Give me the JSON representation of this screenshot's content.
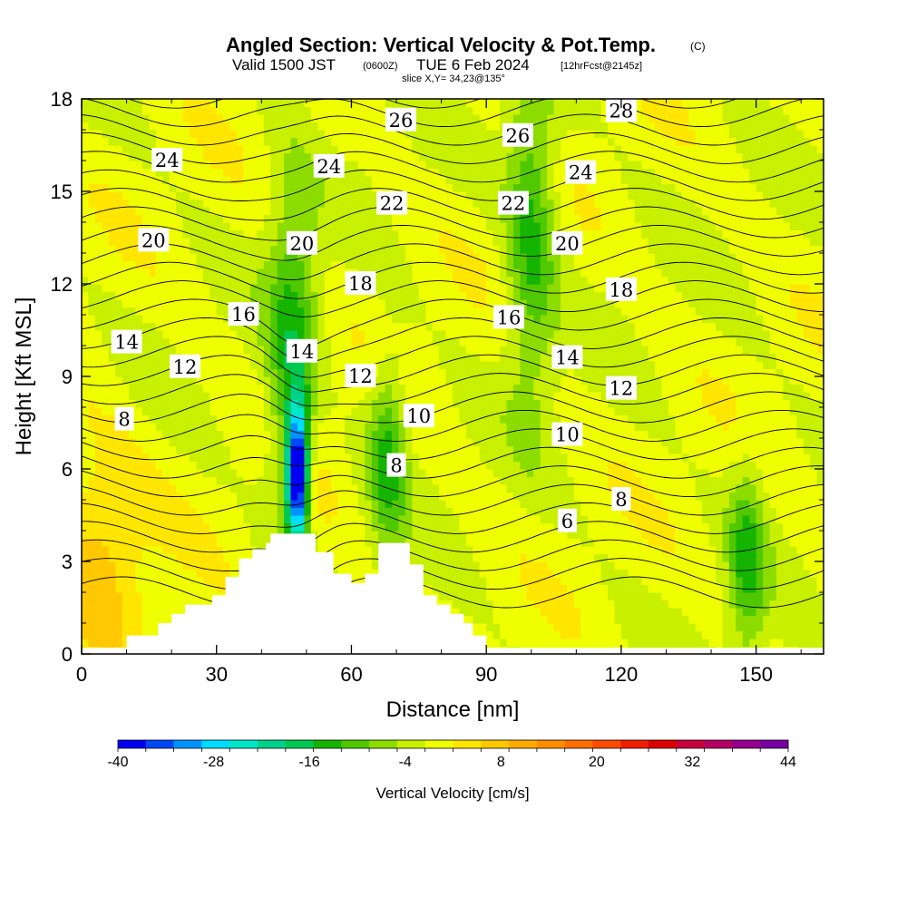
{
  "header": {
    "title": "Angled Section: Vertical Velocity & Pot.Temp.",
    "title_suffix": "(C)",
    "valid_prefix": "Valid 1500 JST",
    "valid_utc": "(0600Z)",
    "valid_date": "TUE 6 Feb 2024",
    "forecast_info": "[12hrFcst@2145z]",
    "slice_info": "slice X,Y= 34,23@135°"
  },
  "colors": {
    "terrain": "#ffffff",
    "contour": "#000000",
    "frame": "#000000"
  },
  "chart_data": {
    "type": "heatmap",
    "title": "Angled Section: Vertical Velocity & Pot.Temp.",
    "xlabel": "Distance [nm]",
    "ylabel": "Height [Kft MSL]",
    "xlim": [
      0,
      165
    ],
    "ylim": [
      0,
      18
    ],
    "x_ticks": [
      0,
      30,
      60,
      90,
      120,
      150
    ],
    "y_ticks": [
      0,
      3,
      6,
      9,
      12,
      15,
      18
    ],
    "colorbar": {
      "title": "Vertical Velocity [cm/s]",
      "min": -40,
      "max": 44,
      "step": 4,
      "tick_labels": [
        "-40",
        "-28",
        "-16",
        "-4",
        "8",
        "20",
        "32",
        "44"
      ],
      "colors": [
        "#0000f0",
        "#0048f5",
        "#0093ff",
        "#00dcff",
        "#00e6c8",
        "#00d28c",
        "#00c850",
        "#14b400",
        "#50c800",
        "#8cdc00",
        "#c8f000",
        "#f0ff00",
        "#ffe600",
        "#ffc800",
        "#ffaa00",
        "#ff8c00",
        "#ff6e00",
        "#ff4b00",
        "#f01e00",
        "#dc0000",
        "#c8003c",
        "#b40064",
        "#96008c",
        "#7800a0"
      ]
    },
    "velocity_field": {
      "description_units": "cm/s",
      "background": 5,
      "features": [
        {
          "x": 48,
          "y": 5.8,
          "peak": -42,
          "kind": "downdraft core"
        },
        {
          "x": 47,
          "y": 9.5,
          "peak": -10,
          "kind": "downdraft band"
        },
        {
          "x": 52,
          "y": 6.0,
          "peak": 9,
          "kind": "updraft lee"
        },
        {
          "x": 68,
          "y": 6.5,
          "peak": -9,
          "kind": "downdraft"
        },
        {
          "x": 100,
          "y": 14,
          "peak": -9,
          "kind": "downdraft band"
        },
        {
          "x": 3,
          "y": 3.5,
          "peak": 14,
          "kind": "updraft"
        },
        {
          "x": 148,
          "y": 3,
          "peak": -8,
          "kind": "downdraft"
        }
      ]
    },
    "terrain_kft": [
      {
        "x": 10,
        "h": 0.6
      },
      {
        "x": 16,
        "h": 0.6
      },
      {
        "x": 17,
        "h": 1.0
      },
      {
        "x": 20,
        "h": 1.3
      },
      {
        "x": 23,
        "h": 1.6
      },
      {
        "x": 29,
        "h": 1.9
      },
      {
        "x": 32,
        "h": 2.5
      },
      {
        "x": 35,
        "h": 3.1
      },
      {
        "x": 38,
        "h": 3.4
      },
      {
        "x": 41,
        "h": 3.6
      },
      {
        "x": 42,
        "h": 3.9
      },
      {
        "x": 51,
        "h": 3.9
      },
      {
        "x": 52,
        "h": 3.3
      },
      {
        "x": 55,
        "h": 3.3
      },
      {
        "x": 56,
        "h": 2.6
      },
      {
        "x": 59,
        "h": 2.6
      },
      {
        "x": 60,
        "h": 2.3
      },
      {
        "x": 62,
        "h": 2.3
      },
      {
        "x": 63,
        "h": 2.6
      },
      {
        "x": 65,
        "h": 2.6
      },
      {
        "x": 66,
        "h": 3.6
      },
      {
        "x": 72,
        "h": 3.6
      },
      {
        "x": 73,
        "h": 2.9
      },
      {
        "x": 75,
        "h": 2.9
      },
      {
        "x": 76,
        "h": 1.9
      },
      {
        "x": 79,
        "h": 1.6
      },
      {
        "x": 82,
        "h": 1.3
      },
      {
        "x": 85,
        "h": 1.0
      },
      {
        "x": 87,
        "h": 0.6
      },
      {
        "x": 90,
        "h": 0.6
      }
    ],
    "contour_labels": [
      {
        "text": "24",
        "x": 19,
        "y": 16.0
      },
      {
        "text": "20",
        "x": 16,
        "y": 13.4
      },
      {
        "text": "16",
        "x": 36,
        "y": 11.0
      },
      {
        "text": "14",
        "x": 10,
        "y": 10.1
      },
      {
        "text": "12",
        "x": 23,
        "y": 9.3
      },
      {
        "text": "8",
        "x": 9.5,
        "y": 7.6
      },
      {
        "text": "24",
        "x": 55,
        "y": 15.8
      },
      {
        "text": "26",
        "x": 71,
        "y": 17.3
      },
      {
        "text": "20",
        "x": 49,
        "y": 13.3
      },
      {
        "text": "22",
        "x": 69,
        "y": 14.6
      },
      {
        "text": "18",
        "x": 62,
        "y": 12.0
      },
      {
        "text": "14",
        "x": 49,
        "y": 9.8
      },
      {
        "text": "12",
        "x": 62,
        "y": 9.0
      },
      {
        "text": "10",
        "x": 75,
        "y": 7.7
      },
      {
        "text": "8",
        "x": 70,
        "y": 6.1
      },
      {
        "text": "26",
        "x": 97,
        "y": 16.8
      },
      {
        "text": "28",
        "x": 120,
        "y": 17.6
      },
      {
        "text": "24",
        "x": 111,
        "y": 15.6
      },
      {
        "text": "22",
        "x": 96,
        "y": 14.6
      },
      {
        "text": "20",
        "x": 108,
        "y": 13.3
      },
      {
        "text": "18",
        "x": 120,
        "y": 11.8
      },
      {
        "text": "16",
        "x": 95,
        "y": 10.9
      },
      {
        "text": "14",
        "x": 108,
        "y": 9.6
      },
      {
        "text": "12",
        "x": 120,
        "y": 8.6
      },
      {
        "text": "10",
        "x": 108,
        "y": 7.1
      },
      {
        "text": "8",
        "x": 120,
        "y": 5.0
      },
      {
        "text": "6",
        "x": 108,
        "y": 4.3
      }
    ]
  }
}
